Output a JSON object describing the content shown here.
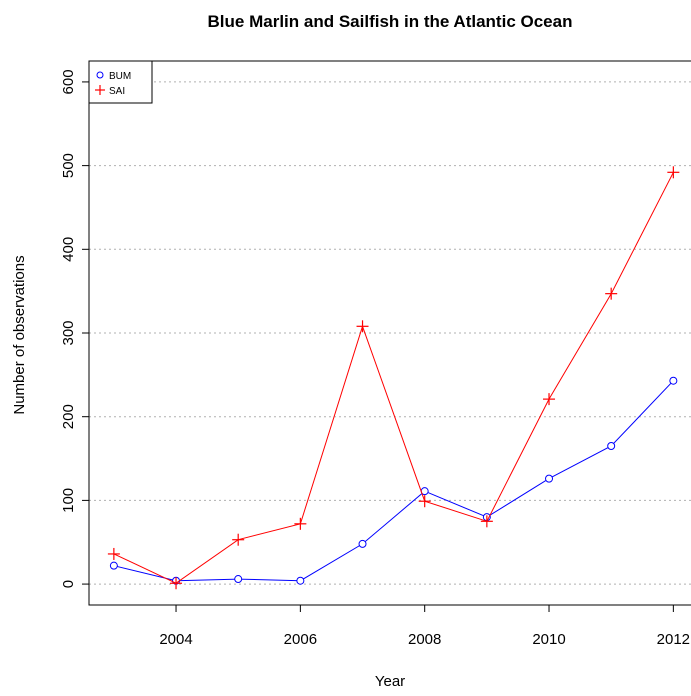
{
  "chart_data": {
    "type": "line",
    "title": "Blue Marlin and Sailfish in the Atlantic Ocean",
    "xlabel": "Year",
    "ylabel": "Number of observations",
    "x": [
      2003,
      2004,
      2005,
      2006,
      2007,
      2008,
      2009,
      2010,
      2011,
      2012
    ],
    "xlim": [
      2002.6,
      2012.3
    ],
    "ylim": [
      -25,
      625
    ],
    "xticks": [
      "2004",
      "2006",
      "2008",
      "2010",
      "2012"
    ],
    "yticks": [
      "0",
      "100",
      "200",
      "300",
      "400",
      "500",
      "600"
    ],
    "grid": "horizontal dotted",
    "legend_position": "top-left",
    "series": [
      {
        "name": "BUM",
        "color": "#0000ff",
        "marker": "circle",
        "values": [
          22,
          4,
          6,
          4,
          48,
          111,
          80,
          126,
          165,
          243
        ]
      },
      {
        "name": "SAI",
        "color": "#ff0000",
        "marker": "plus",
        "values": [
          36,
          1,
          53,
          72,
          308,
          99,
          75,
          221,
          347,
          492
        ]
      }
    ]
  }
}
